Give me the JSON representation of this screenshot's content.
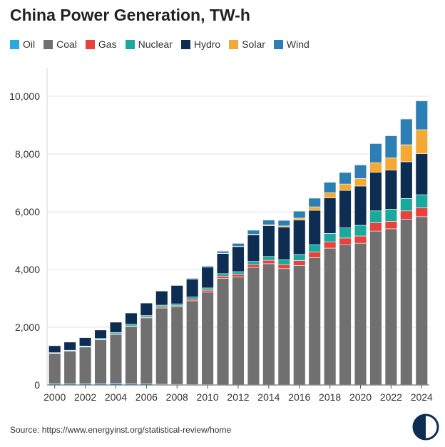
{
  "title": "China Power Generation, TW-h",
  "source": "Source: https://www.energyinst.org/statistical-review/home",
  "chart_data": {
    "type": "bar",
    "stacked": true,
    "title": "China Power Generation, TW-h",
    "xlabel": "",
    "ylabel": "",
    "ylim": [
      0,
      10000
    ],
    "yticks": [
      0,
      2000,
      4000,
      6000,
      8000,
      10000
    ],
    "ytick_labels": [
      "0",
      "2,000",
      "4,000",
      "6,000",
      "8,000",
      "10,000"
    ],
    "xtick_labels": [
      "2000",
      "2002",
      "2004",
      "2006",
      "2008",
      "2010",
      "2012",
      "2014",
      "2016",
      "2018",
      "2020",
      "2022",
      "2024"
    ],
    "grid": "horizontal",
    "legend_position": "top",
    "categories": [
      "2000",
      "2001",
      "2002",
      "2003",
      "2004",
      "2005",
      "2006",
      "2007",
      "2008",
      "2009",
      "2010",
      "2011",
      "2012",
      "2013",
      "2014",
      "2015",
      "2016",
      "2017",
      "2018",
      "2019",
      "2020",
      "2021",
      "2022",
      "2023",
      "2024"
    ],
    "series": [
      {
        "name": "Oil",
        "color": "#29a8e0",
        "values": [
          40,
          40,
          40,
          40,
          55,
          40,
          35,
          25,
          20,
          15,
          15,
          10,
          10,
          10,
          10,
          10,
          10,
          10,
          10,
          10,
          10,
          10,
          10,
          10,
          10
        ]
      },
      {
        "name": "Coal",
        "color": "#707070",
        "values": [
          1060,
          1140,
          1280,
          1530,
          1700,
          1990,
          2290,
          2640,
          2690,
          2900,
          3200,
          3680,
          3730,
          4060,
          4190,
          4020,
          4130,
          4400,
          4730,
          4850,
          4900,
          5320,
          5400,
          5730,
          5820
        ]
      },
      {
        "name": "Gas",
        "color": "#e8423c",
        "values": [
          5,
          5,
          5,
          5,
          10,
          15,
          25,
          40,
          35,
          60,
          70,
          80,
          90,
          100,
          120,
          140,
          170,
          200,
          220,
          230,
          250,
          290,
          260,
          290,
          310
        ]
      },
      {
        "name": "Nuclear",
        "color": "#1ba99d",
        "values": [
          15,
          20,
          25,
          40,
          50,
          55,
          55,
          60,
          65,
          70,
          75,
          85,
          95,
          110,
          130,
          170,
          210,
          250,
          290,
          350,
          370,
          410,
          420,
          430,
          450
        ]
      },
      {
        "name": "Hydro",
        "color": "#0d2d52",
        "values": [
          240,
          280,
          290,
          290,
          360,
          400,
          440,
          490,
          640,
          620,
          720,
          700,
          870,
          920,
          1070,
          1130,
          1190,
          1190,
          1230,
          1300,
          1360,
          1340,
          1350,
          1270,
          1420
        ]
      },
      {
        "name": "Solar",
        "color": "#f4a935",
        "values": [
          0,
          0,
          0,
          0,
          0,
          0,
          0,
          0,
          0,
          0,
          0,
          10,
          10,
          20,
          30,
          40,
          70,
          120,
          180,
          220,
          260,
          330,
          430,
          590,
          830
        ]
      },
      {
        "name": "Wind",
        "color": "#2d7fb3",
        "values": [
          0,
          0,
          0,
          0,
          0,
          5,
          5,
          10,
          10,
          30,
          40,
          70,
          100,
          140,
          160,
          190,
          240,
          300,
          360,
          400,
          470,
          660,
          760,
          890,
          1000
        ]
      }
    ]
  }
}
